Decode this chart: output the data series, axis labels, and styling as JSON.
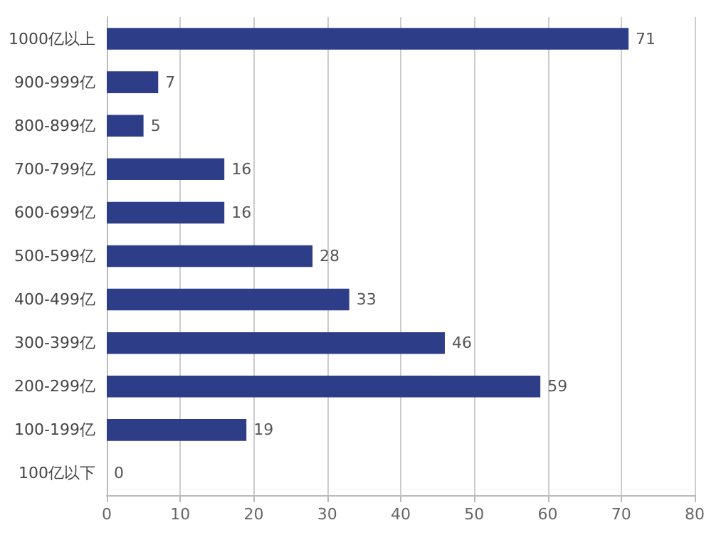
{
  "chart_data": {
    "type": "bar",
    "orientation": "horizontal",
    "categories": [
      "1000亿以上",
      "900-999亿",
      "800-899亿",
      "700-799亿",
      "600-699亿",
      "500-599亿",
      "400-499亿",
      "300-399亿",
      "200-299亿",
      "100-199亿",
      "100亿以下"
    ],
    "values": [
      71,
      7,
      5,
      16,
      16,
      28,
      33,
      46,
      59,
      19,
      0
    ],
    "color": "#2e3d87",
    "xlim": [
      0,
      80
    ],
    "xticks": [
      0,
      10,
      20,
      30,
      40,
      50,
      60,
      70,
      80
    ],
    "grid": "x",
    "data_labels": true
  }
}
